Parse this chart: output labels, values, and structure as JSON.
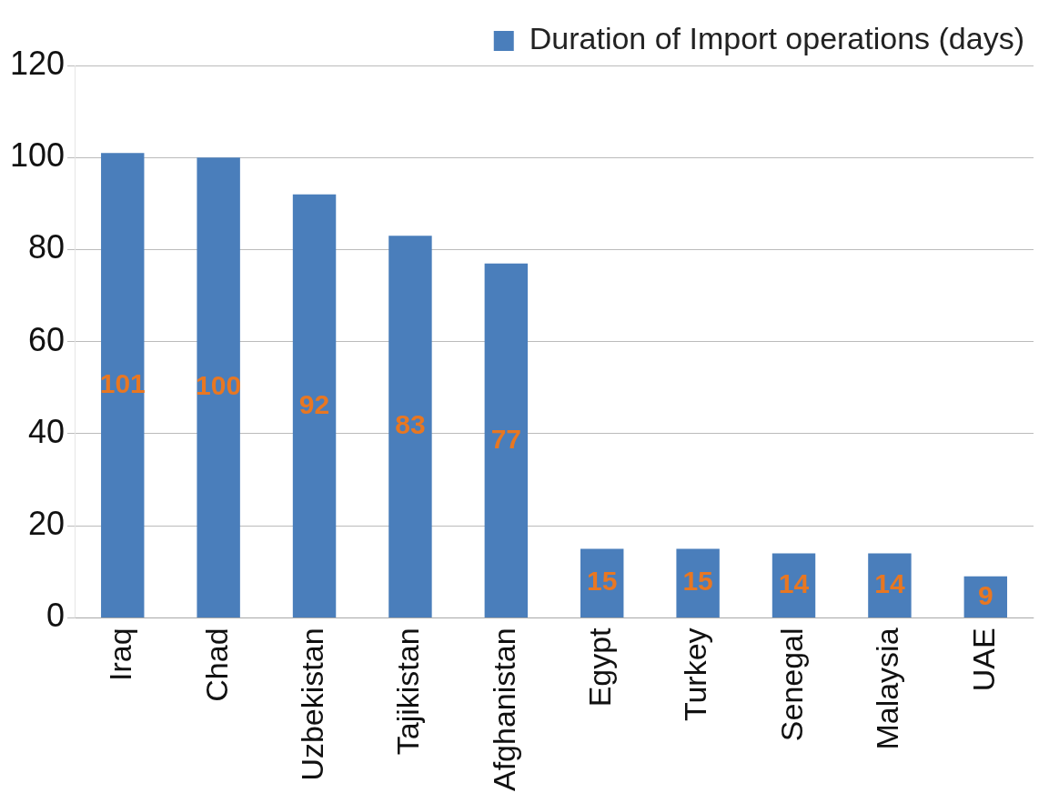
{
  "chart_data": {
    "type": "bar",
    "categories": [
      "Iraq",
      "Chad",
      "Uzbekistan",
      "Tajikistan",
      "Afghanistan",
      "Egypt",
      "Turkey",
      "Senegal",
      "Malaysia",
      "UAE"
    ],
    "series": [
      {
        "name": "Duration of Import operations (days)",
        "color": "#4a7ebb",
        "values": [
          101,
          100,
          92,
          83,
          77,
          15,
          15,
          14,
          14,
          9
        ]
      }
    ],
    "ylim": [
      0,
      120
    ],
    "yticks": [
      0,
      20,
      40,
      60,
      80,
      100,
      120
    ],
    "grid": "y",
    "legend": "top right",
    "data_labels": true
  }
}
